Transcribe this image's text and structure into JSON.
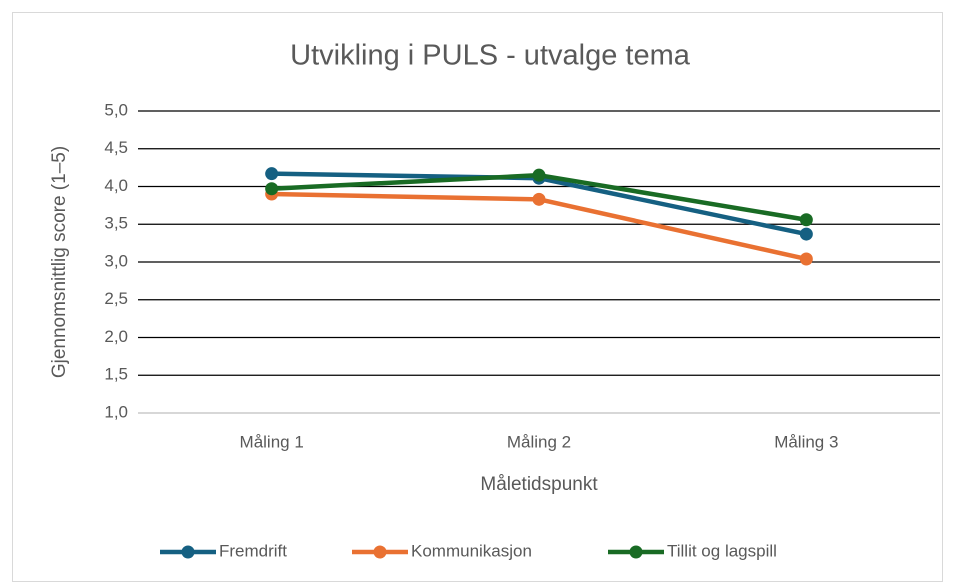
{
  "chart_data": {
    "type": "line",
    "title": "Utvikling i PULS - utvalge tema",
    "y_label": "Gjennomsnittlig score (1–5)",
    "x_label": "Måletidspunkt",
    "categories": [
      "Måling 1",
      "Måling 2",
      "Måling 3"
    ],
    "series": [
      {
        "name": "Fremdrift",
        "color": "#156082",
        "values": [
          4.17,
          4.11,
          3.37
        ]
      },
      {
        "name": "Kommunikasjon",
        "color": "#e97132",
        "values": [
          3.9,
          3.83,
          3.04
        ]
      },
      {
        "name": "Tillit og lagspill",
        "color": "#196b24",
        "values": [
          3.97,
          4.15,
          3.56
        ]
      }
    ],
    "ylim": [
      1,
      5
    ],
    "yticks": [
      {
        "value": 1,
        "label": "1,0"
      },
      {
        "value": 1.5,
        "label": "1,5"
      },
      {
        "value": 2,
        "label": "2,0"
      },
      {
        "value": 2.5,
        "label": "2,5"
      },
      {
        "value": 3,
        "label": "3,0"
      },
      {
        "value": 3.5,
        "label": "3,5"
      },
      {
        "value": 4,
        "label": "4,0"
      },
      {
        "value": 4.5,
        "label": "4,5"
      },
      {
        "value": 5,
        "label": "5,0"
      }
    ],
    "grid": true,
    "legend": "bottom"
  }
}
